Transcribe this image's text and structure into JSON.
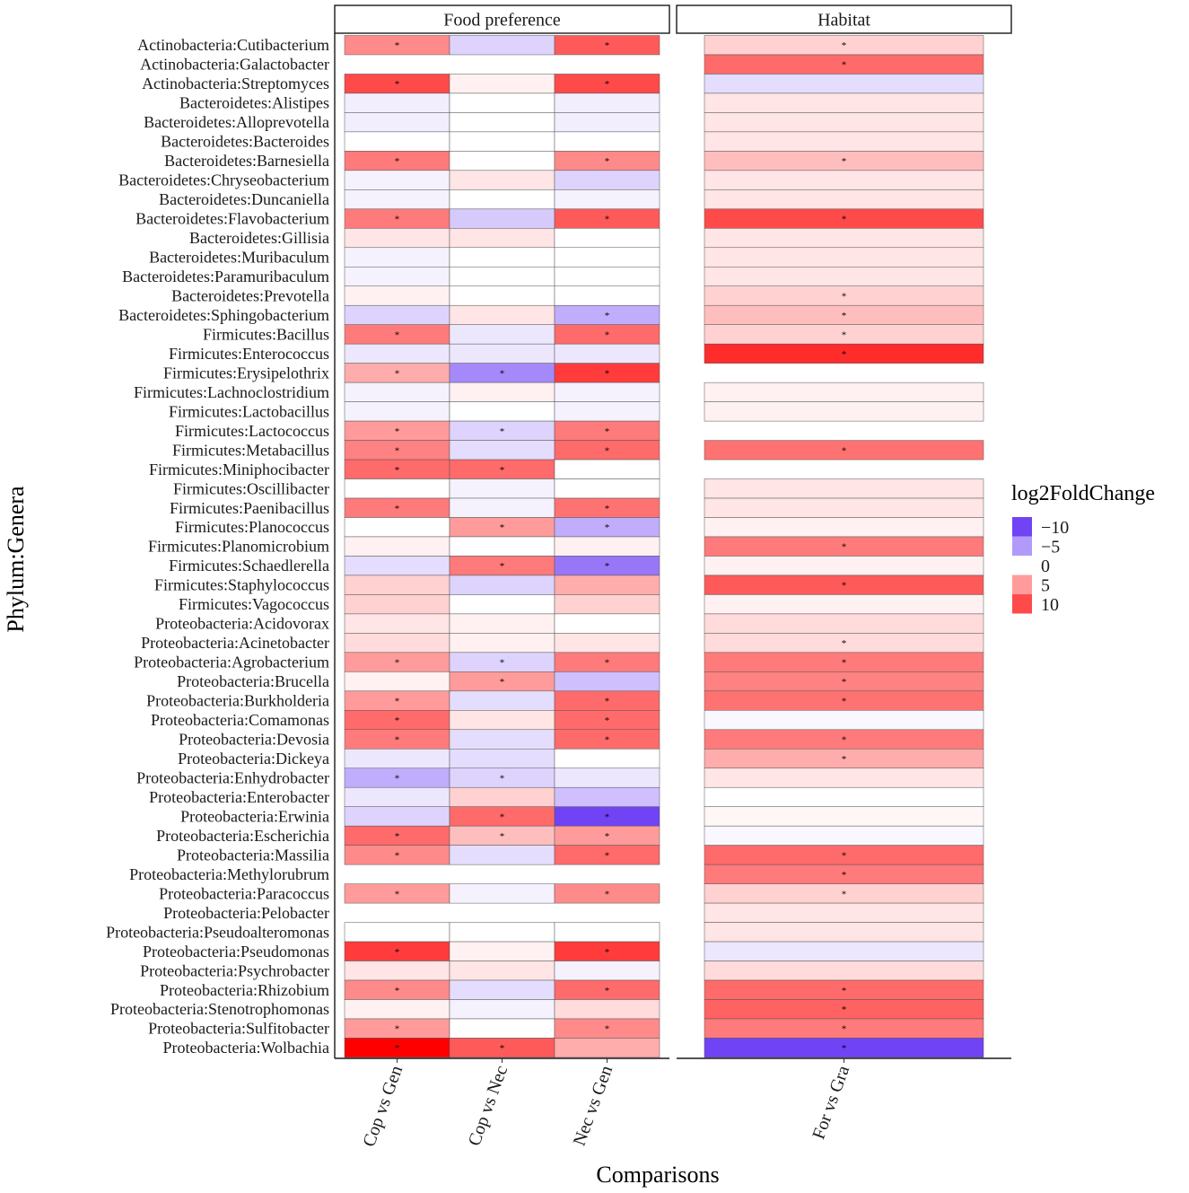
{
  "chart_data": {
    "type": "heatmap",
    "xlabel": "Comparisons",
    "ylabel": "Phylum:Genera",
    "legend": {
      "title": "log2FoldChange",
      "ticks": [
        -10,
        -5,
        0,
        5,
        10
      ],
      "tick_labels": [
        "−10",
        "−5",
        "0",
        "5",
        "10"
      ],
      "colors": {
        "low": "#7043f5",
        "mid": "#ffffff",
        "high": "#ff0000"
      }
    },
    "panels": [
      {
        "title": "Food preference",
        "columns": [
          "Cop vs Gen",
          "Cop vs Nec",
          "Nec vs Gen"
        ]
      },
      {
        "title": "Habitat",
        "columns": [
          "For vs Gra"
        ]
      }
    ],
    "rows": [
      {
        "label": "Actinobacteria:Cutibacterium",
        "fp": [
          6,
          -2,
          9
        ],
        "fps": [
          1,
          0,
          1
        ],
        "hb": 2,
        "hbs": 1
      },
      {
        "label": "Actinobacteria:Galactobacter",
        "fp": [
          null,
          null,
          null
        ],
        "fps": [
          0,
          0,
          0
        ],
        "hb": 8,
        "hbs": 1
      },
      {
        "label": "Actinobacteria:Streptomyces",
        "fp": [
          10,
          0.5,
          10
        ],
        "fps": [
          1,
          0,
          1
        ],
        "hb": -1.5,
        "hbs": 0
      },
      {
        "label": "Bacteroidetes:Alistipes",
        "fp": [
          -0.7,
          0,
          -0.7
        ],
        "fps": [
          0,
          0,
          0
        ],
        "hb": 1,
        "hbs": 0
      },
      {
        "label": "Bacteroidetes:Alloprevotella",
        "fp": [
          -0.7,
          0,
          -0.7
        ],
        "fps": [
          0,
          0,
          0
        ],
        "hb": 1,
        "hbs": 0
      },
      {
        "label": "Bacteroidetes:Bacteroides",
        "fp": [
          0,
          0,
          0
        ],
        "fps": [
          0,
          0,
          0
        ],
        "hb": 1,
        "hbs": 0
      },
      {
        "label": "Bacteroidetes:Barnesiella",
        "fp": [
          7,
          0,
          6
        ],
        "fps": [
          1,
          0,
          1
        ],
        "hb": 3,
        "hbs": 1
      },
      {
        "label": "Bacteroidetes:Chryseobacterium",
        "fp": [
          -0.5,
          1,
          -2
        ],
        "fps": [
          0,
          0,
          0
        ],
        "hb": 1,
        "hbs": 0
      },
      {
        "label": "Bacteroidetes:Duncaniella",
        "fp": [
          -0.5,
          0,
          -0.5
        ],
        "fps": [
          0,
          0,
          0
        ],
        "hb": 1,
        "hbs": 0
      },
      {
        "label": "Bacteroidetes:Flavobacterium",
        "fp": [
          7,
          -2.5,
          9
        ],
        "fps": [
          1,
          0,
          1
        ],
        "hb": 10,
        "hbs": 1
      },
      {
        "label": "Bacteroidetes:Gillisia",
        "fp": [
          1,
          1,
          0
        ],
        "fps": [
          0,
          0,
          0
        ],
        "hb": 1,
        "hbs": 0
      },
      {
        "label": "Bacteroidetes:Muribaculum",
        "fp": [
          -0.5,
          0,
          0
        ],
        "fps": [
          0,
          0,
          0
        ],
        "hb": 1,
        "hbs": 0
      },
      {
        "label": "Bacteroidetes:Paramuribaculum",
        "fp": [
          -0.5,
          0,
          0
        ],
        "fps": [
          0,
          0,
          0
        ],
        "hb": 1,
        "hbs": 0
      },
      {
        "label": "Bacteroidetes:Prevotella",
        "fp": [
          0.5,
          0,
          0
        ],
        "fps": [
          0,
          0,
          0
        ],
        "hb": 2,
        "hbs": 1
      },
      {
        "label": "Bacteroidetes:Sphingobacterium",
        "fp": [
          -2,
          1,
          -4
        ],
        "fps": [
          0,
          0,
          1
        ],
        "hb": 3,
        "hbs": 1
      },
      {
        "label": "Firmicutes:Bacillus",
        "fp": [
          7,
          -1,
          8
        ],
        "fps": [
          1,
          0,
          1
        ],
        "hb": 2,
        "hbs": 1
      },
      {
        "label": "Firmicutes:Enterococcus",
        "fp": [
          -1,
          -1,
          -1
        ],
        "fps": [
          0,
          0,
          0
        ],
        "hb": 12,
        "hbs": 1
      },
      {
        "label": "Firmicutes:Erysipelothrix",
        "fp": [
          4,
          -6,
          11
        ],
        "fps": [
          1,
          1,
          1
        ],
        "hb": null,
        "hbs": 0
      },
      {
        "label": "Firmicutes:Lachnoclostridium",
        "fp": [
          -0.5,
          0.5,
          -0.5
        ],
        "fps": [
          0,
          0,
          0
        ],
        "hb": 0.5,
        "hbs": 0
      },
      {
        "label": "Firmicutes:Lactobacillus",
        "fp": [
          -0.5,
          0,
          -0.5
        ],
        "fps": [
          0,
          0,
          0
        ],
        "hb": 0.5,
        "hbs": 0
      },
      {
        "label": "Firmicutes:Lactococcus",
        "fp": [
          5,
          -2,
          7
        ],
        "fps": [
          1,
          1,
          1
        ],
        "hb": null,
        "hbs": 0
      },
      {
        "label": "Firmicutes:Metabacillus",
        "fp": [
          6.5,
          -1.5,
          8
        ],
        "fps": [
          1,
          0,
          1
        ],
        "hb": 7.5,
        "hbs": 1
      },
      {
        "label": "Firmicutes:Miniphocibacter",
        "fp": [
          8,
          8,
          0
        ],
        "fps": [
          1,
          1,
          0
        ],
        "hb": null,
        "hbs": 0
      },
      {
        "label": "Firmicutes:Oscillibacter",
        "fp": [
          0,
          -0.5,
          0
        ],
        "fps": [
          0,
          0,
          0
        ],
        "hb": 1,
        "hbs": 0
      },
      {
        "label": "Firmicutes:Paenibacillus",
        "fp": [
          7,
          -0.5,
          7.5
        ],
        "fps": [
          1,
          0,
          1
        ],
        "hb": 1,
        "hbs": 0
      },
      {
        "label": "Firmicutes:Planococcus",
        "fp": [
          0,
          5,
          -4
        ],
        "fps": [
          0,
          1,
          1
        ],
        "hb": 0.5,
        "hbs": 0
      },
      {
        "label": "Firmicutes:Planomicrobium",
        "fp": [
          0.5,
          0,
          0.5
        ],
        "fps": [
          0,
          0,
          0
        ],
        "hb": 7,
        "hbs": 1
      },
      {
        "label": "Firmicutes:Schaedlerella",
        "fp": [
          -1.5,
          7,
          -7
        ],
        "fps": [
          0,
          1,
          1
        ],
        "hb": 0.5,
        "hbs": 0
      },
      {
        "label": "Firmicutes:Staphylococcus",
        "fp": [
          2,
          -2,
          4
        ],
        "fps": [
          0,
          0,
          0
        ],
        "hb": 9,
        "hbs": 1
      },
      {
        "label": "Firmicutes:Vagococcus",
        "fp": [
          2,
          0,
          2
        ],
        "fps": [
          0,
          0,
          0
        ],
        "hb": 0.5,
        "hbs": 0
      },
      {
        "label": "Proteobacteria:Acidovorax",
        "fp": [
          1,
          0.5,
          0
        ],
        "fps": [
          0,
          0,
          0
        ],
        "hb": 1.5,
        "hbs": 0
      },
      {
        "label": "Proteobacteria:Acinetobacter",
        "fp": [
          1.5,
          0.5,
          1
        ],
        "fps": [
          0,
          0,
          0
        ],
        "hb": 1.5,
        "hbs": 1
      },
      {
        "label": "Proteobacteria:Agrobacterium",
        "fp": [
          5,
          -2,
          7
        ],
        "fps": [
          1,
          1,
          1
        ],
        "hb": 7,
        "hbs": 1
      },
      {
        "label": "Proteobacteria:Brucella",
        "fp": [
          0.5,
          5,
          -3
        ],
        "fps": [
          0,
          1,
          0
        ],
        "hb": 6.5,
        "hbs": 1
      },
      {
        "label": "Proteobacteria:Burkholderia",
        "fp": [
          5,
          -1.5,
          8
        ],
        "fps": [
          1,
          0,
          1
        ],
        "hb": 7.5,
        "hbs": 1
      },
      {
        "label": "Proteobacteria:Comamonas",
        "fp": [
          8,
          1,
          8
        ],
        "fps": [
          1,
          0,
          1
        ],
        "hb": -0.3,
        "hbs": 0
      },
      {
        "label": "Proteobacteria:Devosia",
        "fp": [
          7,
          -1.5,
          8
        ],
        "fps": [
          1,
          0,
          1
        ],
        "hb": 7,
        "hbs": 1
      },
      {
        "label": "Proteobacteria:Dickeya",
        "fp": [
          -1,
          -1.5,
          0
        ],
        "fps": [
          0,
          0,
          0
        ],
        "hb": 4,
        "hbs": 1
      },
      {
        "label": "Proteobacteria:Enhydrobacter",
        "fp": [
          -4,
          -2,
          -1
        ],
        "fps": [
          1,
          1,
          0
        ],
        "hb": 1,
        "hbs": 0
      },
      {
        "label": "Proteobacteria:Enterobacter",
        "fp": [
          -1,
          2,
          -3
        ],
        "fps": [
          0,
          0,
          0
        ],
        "hb": 0,
        "hbs": 0
      },
      {
        "label": "Proteobacteria:Erwinia",
        "fp": [
          -2,
          8,
          -10
        ],
        "fps": [
          0,
          1,
          1
        ],
        "hb": 0.3,
        "hbs": 0
      },
      {
        "label": "Proteobacteria:Escherichia",
        "fp": [
          8,
          3,
          5
        ],
        "fps": [
          1,
          1,
          1
        ],
        "hb": -0.3,
        "hbs": 0
      },
      {
        "label": "Proteobacteria:Massilia",
        "fp": [
          6,
          -1.5,
          8
        ],
        "fps": [
          1,
          0,
          1
        ],
        "hb": 8,
        "hbs": 1
      },
      {
        "label": "Proteobacteria:Methylorubrum",
        "fp": [
          null,
          null,
          null
        ],
        "fps": [
          0,
          0,
          0
        ],
        "hb": 7,
        "hbs": 1
      },
      {
        "label": "Proteobacteria:Paracoccus",
        "fp": [
          5,
          -0.5,
          6
        ],
        "fps": [
          1,
          0,
          1
        ],
        "hb": 2,
        "hbs": 1
      },
      {
        "label": "Proteobacteria:Pelobacter",
        "fp": [
          null,
          null,
          null
        ],
        "fps": [
          0,
          0,
          0
        ],
        "hb": 1,
        "hbs": 0
      },
      {
        "label": "Proteobacteria:Pseudoalteromonas",
        "fp": [
          0,
          0,
          0
        ],
        "fps": [
          0,
          0,
          0
        ],
        "hb": 1,
        "hbs": 0
      },
      {
        "label": "Proteobacteria:Pseudomonas",
        "fp": [
          11,
          0.5,
          11
        ],
        "fps": [
          1,
          0,
          1
        ],
        "hb": -1,
        "hbs": 0
      },
      {
        "label": "Proteobacteria:Psychrobacter",
        "fp": [
          1,
          1,
          -0.5
        ],
        "fps": [
          0,
          0,
          0
        ],
        "hb": 1.5,
        "hbs": 0
      },
      {
        "label": "Proteobacteria:Rhizobium",
        "fp": [
          6,
          -1.5,
          8
        ],
        "fps": [
          1,
          0,
          1
        ],
        "hb": 8,
        "hbs": 1
      },
      {
        "label": "Proteobacteria:Stenotrophomonas",
        "fp": [
          0.5,
          -0.5,
          1.5
        ],
        "fps": [
          0,
          0,
          0
        ],
        "hb": 8.5,
        "hbs": 1
      },
      {
        "label": "Proteobacteria:Sulfitobacter",
        "fp": [
          5,
          0,
          6
        ],
        "fps": [
          1,
          0,
          1
        ],
        "hb": 7,
        "hbs": 1
      },
      {
        "label": "Proteobacteria:Wolbachia",
        "fp": [
          15,
          9,
          4
        ],
        "fps": [
          1,
          1,
          0
        ],
        "hb": -10,
        "hbs": 1
      }
    ]
  }
}
